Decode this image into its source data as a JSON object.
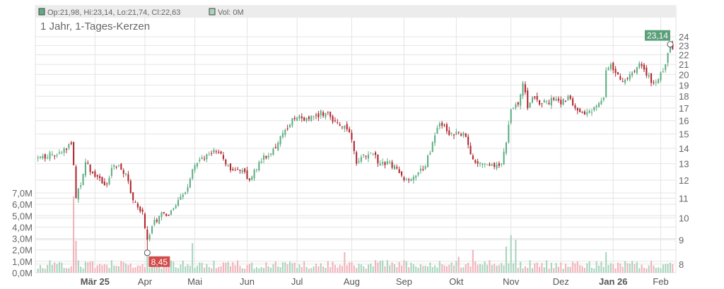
{
  "legend": {
    "ohlc_label": "Op:21,98, Hi:23,14, Lo:21,74, Cl:22,63",
    "volume_label": "Vol: 0M"
  },
  "chart_title": "1 Jahr, 1-Tages-Kerzen",
  "colors": {
    "up": "#5fae83",
    "down": "#b0272f",
    "volume_up": "#a8d4bd",
    "volume_down": "#f0b3ba",
    "badge_high": "#5aa07a",
    "badge_low": "#d44b4b",
    "grid": "#e4e4e4"
  },
  "chart_data": {
    "type": "candlestick",
    "title": "1 Jahr, 1-Tages-Kerzen",
    "price_axis": {
      "scale": "log",
      "ticks": [
        "8",
        "9",
        "10",
        "11",
        "12",
        "13",
        "14",
        "15",
        "16",
        "17",
        "18",
        "19",
        "20",
        "21",
        "22",
        "23",
        "24"
      ],
      "ylim": [
        7.7,
        25
      ]
    },
    "volume_axis": {
      "unit": "M",
      "ticks": [
        "0,0M",
        "1,0M",
        "2,0M",
        "3,0M",
        "4,0M",
        "5,0M",
        "6,0M",
        "7,0M"
      ],
      "ylim": [
        0,
        7
      ]
    },
    "x_ticks": [
      {
        "label": "Mär 25",
        "bold": true,
        "day": 24
      },
      {
        "label": "Apr",
        "bold": false,
        "day": 45
      },
      {
        "label": "Mai",
        "bold": false,
        "day": 66
      },
      {
        "label": "Jun",
        "bold": false,
        "day": 88
      },
      {
        "label": "Jul",
        "bold": false,
        "day": 109
      },
      {
        "label": "Aug",
        "bold": false,
        "day": 132
      },
      {
        "label": "Sep",
        "bold": false,
        "day": 154
      },
      {
        "label": "Okt",
        "bold": false,
        "day": 176
      },
      {
        "label": "Nov",
        "bold": false,
        "day": 199
      },
      {
        "label": "Dez",
        "bold": false,
        "day": 220
      },
      {
        "label": "Jan 26",
        "bold": true,
        "day": 242
      },
      {
        "label": "Feb",
        "bold": false,
        "day": 262
      }
    ],
    "day_count": 268,
    "keyframes": [
      [
        0,
        13.4
      ],
      [
        6,
        13.6
      ],
      [
        12,
        13.9
      ],
      [
        14,
        14.3
      ],
      [
        15,
        12.9
      ],
      [
        16,
        11.0
      ],
      [
        18,
        11.7
      ],
      [
        20,
        13.1
      ],
      [
        24,
        12.2
      ],
      [
        28,
        11.7
      ],
      [
        32,
        12.9
      ],
      [
        37,
        12.4
      ],
      [
        40,
        10.9
      ],
      [
        44,
        10.3
      ],
      [
        46,
        9.0
      ],
      [
        48,
        9.6
      ],
      [
        51,
        10.1
      ],
      [
        55,
        10.1
      ],
      [
        59,
        10.9
      ],
      [
        63,
        11.6
      ],
      [
        66,
        12.9
      ],
      [
        70,
        13.3
      ],
      [
        74,
        13.9
      ],
      [
        78,
        13.3
      ],
      [
        82,
        12.6
      ],
      [
        86,
        12.6
      ],
      [
        89,
        12.0
      ],
      [
        93,
        13.1
      ],
      [
        97,
        13.5
      ],
      [
        100,
        14.0
      ],
      [
        104,
        15.3
      ],
      [
        107,
        16.2
      ],
      [
        110,
        16.4
      ],
      [
        113,
        16.2
      ],
      [
        117,
        16.4
      ],
      [
        121,
        16.6
      ],
      [
        125,
        16.0
      ],
      [
        129,
        15.6
      ],
      [
        132,
        14.6
      ],
      [
        134,
        13.0
      ],
      [
        137,
        13.6
      ],
      [
        140,
        13.7
      ],
      [
        144,
        13.0
      ],
      [
        148,
        13.1
      ],
      [
        151,
        12.7
      ],
      [
        154,
        12.0
      ],
      [
        158,
        12.2
      ],
      [
        162,
        12.6
      ],
      [
        165,
        13.7
      ],
      [
        167,
        14.9
      ],
      [
        169,
        15.8
      ],
      [
        172,
        15.2
      ],
      [
        175,
        14.9
      ],
      [
        179,
        15.1
      ],
      [
        182,
        13.6
      ],
      [
        185,
        13.0
      ],
      [
        188,
        13.0
      ],
      [
        192,
        12.8
      ],
      [
        195,
        13.0
      ],
      [
        197,
        14.4
      ],
      [
        199,
        16.9
      ],
      [
        202,
        17.3
      ],
      [
        204,
        19.2
      ],
      [
        206,
        17.0
      ],
      [
        208,
        17.9
      ],
      [
        211,
        17.3
      ],
      [
        214,
        17.6
      ],
      [
        217,
        17.7
      ],
      [
        220,
        17.3
      ],
      [
        223,
        18.0
      ],
      [
        226,
        17.0
      ],
      [
        229,
        16.6
      ],
      [
        232,
        16.8
      ],
      [
        235,
        17.2
      ],
      [
        238,
        17.9
      ],
      [
        239,
        20.4
      ],
      [
        241,
        21.0
      ],
      [
        244,
        20.0
      ],
      [
        247,
        19.5
      ],
      [
        250,
        20.2
      ],
      [
        253,
        21.1
      ],
      [
        256,
        19.9
      ],
      [
        259,
        19.2
      ],
      [
        262,
        20.2
      ],
      [
        264,
        21.0
      ],
      [
        266,
        23.0
      ],
      [
        267,
        22.6
      ]
    ],
    "volume_spikes": [
      {
        "day": 15,
        "value": 6.7,
        "up": false
      },
      {
        "day": 16,
        "value": 2.8,
        "up": false
      },
      {
        "day": 46,
        "value": 2.0,
        "up": true
      },
      {
        "day": 65,
        "value": 2.6,
        "up": true
      },
      {
        "day": 199,
        "value": 3.3,
        "up": true
      },
      {
        "day": 201,
        "value": 2.9,
        "up": true
      },
      {
        "day": 197,
        "value": 2.3,
        "up": true
      },
      {
        "day": 183,
        "value": 2.0,
        "up": false
      },
      {
        "day": 239,
        "value": 1.8,
        "up": true
      },
      {
        "day": 129,
        "value": 1.8,
        "up": false
      },
      {
        "day": 177,
        "value": 1.4,
        "up": false
      }
    ],
    "high_marker": {
      "label": "23,14",
      "value": 23.14,
      "day": 266
    },
    "low_marker": {
      "label": "8,45",
      "value": 8.45,
      "day": 46
    }
  }
}
